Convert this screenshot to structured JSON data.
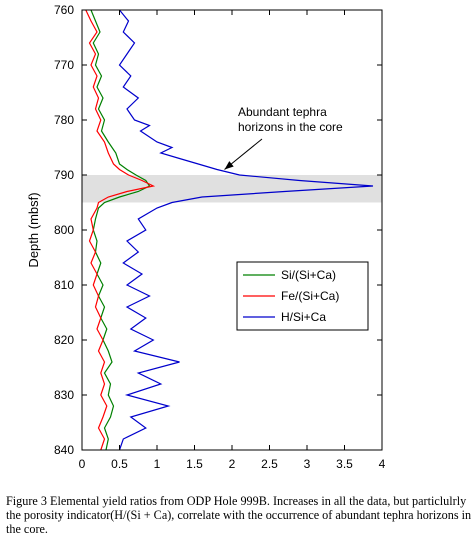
{
  "chart_data": {
    "type": "line",
    "xlim": [
      0,
      4
    ],
    "ylim": [
      760,
      840
    ],
    "y_inverted": true,
    "ylabel": "Depth (mbsf)",
    "xlabel": "",
    "x_ticks": [
      "0",
      "0.5",
      "1",
      "1.5",
      "2",
      "2.5",
      "3",
      "3.5",
      "4"
    ],
    "y_ticks": [
      "760",
      "770",
      "780",
      "790",
      "800",
      "810",
      "820",
      "830",
      "840"
    ],
    "grid": false,
    "legend_position": "right-middle",
    "highlight_band": {
      "depth_from": 790,
      "depth_to": 795,
      "color": "#e0e0e0"
    },
    "annotation": {
      "lines": [
        "Abundant tephra",
        "horizons in the core"
      ],
      "arrow_to_depth": 789,
      "arrow_to_x": 1.9
    },
    "series": [
      {
        "name": "Si/(Si+Ca)",
        "color": "#008000",
        "points": [
          [
            760,
            0.12
          ],
          [
            762,
            0.18
          ],
          [
            764,
            0.24
          ],
          [
            766,
            0.15
          ],
          [
            768,
            0.22
          ],
          [
            770,
            0.18
          ],
          [
            772,
            0.26
          ],
          [
            774,
            0.2
          ],
          [
            776,
            0.28
          ],
          [
            778,
            0.22
          ],
          [
            780,
            0.3
          ],
          [
            782,
            0.26
          ],
          [
            784,
            0.35
          ],
          [
            786,
            0.45
          ],
          [
            788,
            0.5
          ],
          [
            789,
            0.6
          ],
          [
            790,
            0.72
          ],
          [
            791,
            0.85
          ],
          [
            792,
            0.9
          ],
          [
            793,
            0.75
          ],
          [
            794,
            0.5
          ],
          [
            795,
            0.3
          ],
          [
            796,
            0.22
          ],
          [
            798,
            0.18
          ],
          [
            800,
            0.15
          ],
          [
            802,
            0.2
          ],
          [
            804,
            0.18
          ],
          [
            806,
            0.25
          ],
          [
            808,
            0.2
          ],
          [
            810,
            0.28
          ],
          [
            812,
            0.22
          ],
          [
            814,
            0.3
          ],
          [
            816,
            0.25
          ],
          [
            818,
            0.33
          ],
          [
            820,
            0.28
          ],
          [
            822,
            0.35
          ],
          [
            824,
            0.4
          ],
          [
            826,
            0.3
          ],
          [
            828,
            0.38
          ],
          [
            830,
            0.35
          ],
          [
            832,
            0.42
          ],
          [
            834,
            0.38
          ],
          [
            836,
            0.3
          ],
          [
            838,
            0.35
          ],
          [
            840,
            0.32
          ]
        ]
      },
      {
        "name": "Fe/(Si+Ca)",
        "color": "#ff0000",
        "points": [
          [
            760,
            0.05
          ],
          [
            762,
            0.12
          ],
          [
            764,
            0.2
          ],
          [
            766,
            0.1
          ],
          [
            768,
            0.18
          ],
          [
            770,
            0.12
          ],
          [
            772,
            0.2
          ],
          [
            774,
            0.15
          ],
          [
            776,
            0.22
          ],
          [
            778,
            0.18
          ],
          [
            780,
            0.25
          ],
          [
            782,
            0.2
          ],
          [
            784,
            0.3
          ],
          [
            786,
            0.35
          ],
          [
            788,
            0.42
          ],
          [
            789,
            0.5
          ],
          [
            790,
            0.62
          ],
          [
            791,
            0.8
          ],
          [
            792,
            0.95
          ],
          [
            793,
            0.6
          ],
          [
            794,
            0.35
          ],
          [
            795,
            0.22
          ],
          [
            796,
            0.2
          ],
          [
            798,
            0.12
          ],
          [
            800,
            0.15
          ],
          [
            802,
            0.1
          ],
          [
            804,
            0.18
          ],
          [
            806,
            0.12
          ],
          [
            808,
            0.2
          ],
          [
            810,
            0.15
          ],
          [
            812,
            0.22
          ],
          [
            814,
            0.18
          ],
          [
            816,
            0.25
          ],
          [
            818,
            0.2
          ],
          [
            820,
            0.28
          ],
          [
            822,
            0.22
          ],
          [
            824,
            0.3
          ],
          [
            826,
            0.25
          ],
          [
            828,
            0.3
          ],
          [
            830,
            0.25
          ],
          [
            832,
            0.33
          ],
          [
            834,
            0.28
          ],
          [
            836,
            0.22
          ],
          [
            838,
            0.3
          ],
          [
            840,
            0.25
          ]
        ]
      },
      {
        "name": "H/Si+Ca",
        "color": "#0000cc",
        "points": [
          [
            760,
            0.5
          ],
          [
            762,
            0.62
          ],
          [
            764,
            0.55
          ],
          [
            766,
            0.7
          ],
          [
            768,
            0.6
          ],
          [
            770,
            0.5
          ],
          [
            772,
            0.65
          ],
          [
            774,
            0.55
          ],
          [
            776,
            0.75
          ],
          [
            778,
            0.6
          ],
          [
            780,
            0.7
          ],
          [
            781,
            0.9
          ],
          [
            782,
            0.78
          ],
          [
            784,
            1.0
          ],
          [
            785,
            1.2
          ],
          [
            786,
            1.05
          ],
          [
            787,
            1.3
          ],
          [
            788,
            1.55
          ],
          [
            789,
            1.8
          ],
          [
            790,
            2.1
          ],
          [
            791,
            2.9
          ],
          [
            792,
            3.88
          ],
          [
            793,
            2.7
          ],
          [
            794,
            1.6
          ],
          [
            795,
            1.2
          ],
          [
            796,
            1.0
          ],
          [
            798,
            0.75
          ],
          [
            800,
            0.85
          ],
          [
            802,
            0.6
          ],
          [
            804,
            0.75
          ],
          [
            806,
            0.55
          ],
          [
            808,
            0.8
          ],
          [
            810,
            0.6
          ],
          [
            812,
            0.9
          ],
          [
            814,
            0.6
          ],
          [
            816,
            0.85
          ],
          [
            818,
            0.65
          ],
          [
            820,
            0.95
          ],
          [
            822,
            0.7
          ],
          [
            824,
            1.3
          ],
          [
            826,
            0.75
          ],
          [
            828,
            1.05
          ],
          [
            830,
            0.6
          ],
          [
            832,
            1.15
          ],
          [
            834,
            0.65
          ],
          [
            836,
            0.85
          ],
          [
            838,
            0.55
          ],
          [
            840,
            0.5
          ]
        ]
      }
    ]
  },
  "caption": "Figure 3 Elemental yield ratios from ODP Hole 999B. Increases in all the data, but particlulrly the porosity indicator(H/(Si + Ca), correlate with the occurrence of abundant tephra horizons in the core."
}
